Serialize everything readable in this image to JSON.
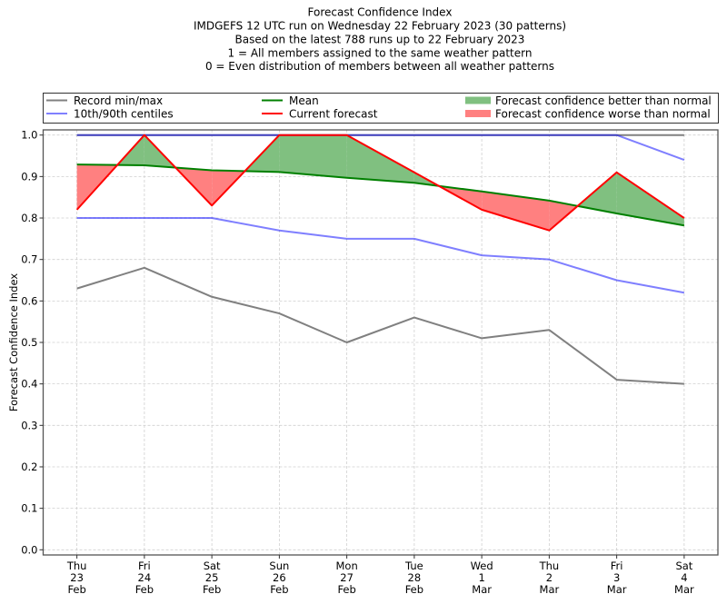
{
  "chart_data": {
    "type": "line",
    "title": [
      "Forecast Confidence Index",
      "IMDGEFS 12 UTC run on Wednesday 22 February 2023 (30 patterns)",
      "Based on the latest 788 runs up to 22 February 2023",
      "1 = All members assigned to the same weather pattern",
      "0 = Even distribution of members between all weather patterns"
    ],
    "xlabel": "",
    "ylabel": "Forecast Confidence Index",
    "categories": [
      [
        "Thu",
        "23",
        "Feb"
      ],
      [
        "Fri",
        "24",
        "Feb"
      ],
      [
        "Sat",
        "25",
        "Feb"
      ],
      [
        "Sun",
        "26",
        "Feb"
      ],
      [
        "Mon",
        "27",
        "Feb"
      ],
      [
        "Tue",
        "28",
        "Feb"
      ],
      [
        "Wed",
        "1",
        "Mar"
      ],
      [
        "Thu",
        "2",
        "Mar"
      ],
      [
        "Fri",
        "3",
        "Mar"
      ],
      [
        "Sat",
        "4",
        "Mar"
      ]
    ],
    "xlim": [
      -0.5,
      9.5
    ],
    "ylim": [
      -0.0125,
      1.0125
    ],
    "yticks": {
      "values": [
        0.0,
        0.1,
        0.2,
        0.3,
        0.4,
        0.5,
        0.6,
        0.7,
        0.8,
        0.9,
        1.0
      ],
      "labels": [
        "0.0",
        "0.1",
        "0.2",
        "0.3",
        "0.4",
        "0.5",
        "0.6",
        "0.7",
        "0.8",
        "0.9",
        "1.0"
      ]
    },
    "grid": true,
    "legend": {
      "position": "top",
      "items": [
        {
          "label": "Record min/max",
          "kind": "line",
          "color": "#808080"
        },
        {
          "label": "10th/90th centiles",
          "kind": "line",
          "color": "#8080ff"
        },
        {
          "label": "Mean",
          "kind": "line",
          "color": "#008000"
        },
        {
          "label": "Current forecast",
          "kind": "line",
          "color": "#ff0000"
        },
        {
          "label": "Forecast confidence better than normal",
          "kind": "patch",
          "color": "#80c080"
        },
        {
          "label": "Forecast confidence worse than normal",
          "kind": "patch",
          "color": "#ff8080"
        }
      ]
    },
    "series": [
      {
        "name": "Record max",
        "color": "#808080",
        "opacity": 1,
        "values": [
          1.0,
          1.0,
          1.0,
          1.0,
          1.0,
          1.0,
          1.0,
          1.0,
          1.0,
          1.0
        ]
      },
      {
        "name": "Record min",
        "color": "#808080",
        "opacity": 1,
        "values": [
          0.63,
          0.68,
          0.61,
          0.57,
          0.5,
          0.56,
          0.51,
          0.53,
          0.41,
          0.4
        ]
      },
      {
        "name": "90th centile",
        "color": "#0000ff",
        "opacity": 0.5,
        "values": [
          1.0,
          1.0,
          1.0,
          1.0,
          1.0,
          1.0,
          1.0,
          1.0,
          1.0,
          0.94
        ]
      },
      {
        "name": "10th centile",
        "color": "#0000ff",
        "opacity": 0.5,
        "values": [
          0.8,
          0.8,
          0.8,
          0.77,
          0.75,
          0.75,
          0.71,
          0.7,
          0.65,
          0.62
        ]
      },
      {
        "name": "Mean",
        "color": "#008000",
        "opacity": 1,
        "values": [
          0.929,
          0.927,
          0.915,
          0.911,
          0.897,
          0.885,
          0.864,
          0.842,
          0.811,
          0.782
        ]
      },
      {
        "name": "Current forecast",
        "color": "#ff0000",
        "opacity": 1,
        "values": [
          0.82,
          1.0,
          0.83,
          1.0,
          1.0,
          0.91,
          0.82,
          0.77,
          0.91,
          0.8
        ]
      }
    ],
    "fill_between": {
      "series_a": "Current forecast",
      "series_b": "Mean",
      "above_color": "#80c080",
      "below_color": "#ff8080",
      "above_label": "Forecast confidence better than normal",
      "below_label": "Forecast confidence worse than normal"
    }
  }
}
